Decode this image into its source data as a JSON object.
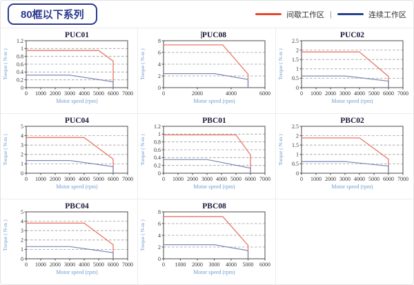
{
  "header": {
    "title": "80框以下系列"
  },
  "legend": {
    "intermittent_label": "间歇工作区",
    "continuous_label": "连续工作区",
    "separator": "|",
    "intermittent_color": "#e8472e",
    "continuous_color": "#24418c"
  },
  "colors": {
    "accent_navy": "#2b3990",
    "chart_red_line": "#e87664",
    "chart_blue_line": "#7b87b4",
    "gridline": "#9a9a9a",
    "axis_border": "#4a4a4a",
    "axis_label_blue": "#6f9ad0",
    "tick_text": "#333333",
    "chart_title": "#1b1b3a"
  },
  "chart_data": [
    {
      "type": "line",
      "title": "PUC01",
      "xlabel": "Motor speed (rpm)",
      "ylabel": "Torque ( N-m )",
      "x_max": 7000,
      "x_ticks": [
        0,
        1000,
        2000,
        3000,
        4000,
        5000,
        6000,
        7000
      ],
      "y_max": 1.2,
      "y_ticks": [
        0,
        0.2,
        0.4,
        0.6,
        0.8,
        1,
        1.2
      ],
      "series": [
        {
          "name": "间歇工作区",
          "color": "red",
          "points": [
            [
              0,
              0.95
            ],
            [
              5000,
              0.95
            ],
            [
              6000,
              0.68
            ],
            [
              6000,
              0
            ]
          ]
        },
        {
          "name": "连续工作区",
          "color": "blue",
          "points": [
            [
              0,
              0.32
            ],
            [
              3000,
              0.32
            ],
            [
              6000,
              0.15
            ],
            [
              6000,
              0
            ]
          ]
        }
      ]
    },
    {
      "type": "line",
      "title": "PUC08",
      "caret": true,
      "xlabel": "Motor speed (rpm)",
      "ylabel": "Torque ( N-m )",
      "x_max": 6000,
      "x_ticks": [
        0,
        2000,
        4000,
        6000
      ],
      "y_max": 8,
      "y_ticks": [
        0,
        2,
        4,
        6,
        8
      ],
      "series": [
        {
          "name": "间歇工作区",
          "color": "red",
          "points": [
            [
              0,
              7.3
            ],
            [
              3500,
              7.3
            ],
            [
              5000,
              2.3
            ],
            [
              5000,
              0
            ]
          ]
        },
        {
          "name": "连续工作区",
          "color": "blue",
          "points": [
            [
              0,
              2.4
            ],
            [
              3000,
              2.4
            ],
            [
              5000,
              1.4
            ],
            [
              5000,
              0
            ]
          ]
        }
      ]
    },
    {
      "type": "line",
      "title": "PUC02",
      "xlabel": "Motor speed (rpm)",
      "ylabel": "Torque ( N-m )",
      "x_max": 7000,
      "x_ticks": [
        0,
        1000,
        2000,
        3000,
        4000,
        5000,
        6000,
        7000
      ],
      "y_max": 2.5,
      "y_ticks": [
        0,
        0.5,
        1,
        1.5,
        2,
        2.5
      ],
      "series": [
        {
          "name": "间歇工作区",
          "color": "red",
          "points": [
            [
              0,
              1.9
            ],
            [
              4000,
              1.9
            ],
            [
              6000,
              0.6
            ],
            [
              6000,
              0
            ]
          ]
        },
        {
          "name": "连续工作区",
          "color": "blue",
          "points": [
            [
              0,
              0.62
            ],
            [
              3000,
              0.62
            ],
            [
              6000,
              0.35
            ],
            [
              6000,
              0
            ]
          ]
        }
      ]
    },
    {
      "type": "line",
      "title": "PUC04",
      "xlabel": "Motor speed (rpm)",
      "ylabel": "Torque ( N-m )",
      "x_max": 7000,
      "x_ticks": [
        0,
        1000,
        2000,
        3000,
        4000,
        5000,
        6000,
        7000
      ],
      "y_max": 5,
      "y_ticks": [
        0,
        1,
        2,
        3,
        4,
        5
      ],
      "series": [
        {
          "name": "间歇工作区",
          "color": "red",
          "points": [
            [
              0,
              3.8
            ],
            [
              4000,
              3.8
            ],
            [
              6000,
              1.5
            ],
            [
              6000,
              0
            ]
          ]
        },
        {
          "name": "连续工作区",
          "color": "blue",
          "points": [
            [
              0,
              1.35
            ],
            [
              3000,
              1.35
            ],
            [
              6000,
              0.7
            ],
            [
              6000,
              0
            ]
          ]
        }
      ]
    },
    {
      "type": "line",
      "title": "PBC01",
      "xlabel": "Motor speed (rpm)",
      "ylabel": "Torque ( N-m )",
      "x_max": 7000,
      "x_ticks": [
        0,
        1000,
        2000,
        3000,
        4000,
        5000,
        6000,
        7000
      ],
      "y_max": 1.2,
      "y_ticks": [
        0,
        0.2,
        0.4,
        0.6,
        0.8,
        1,
        1.2
      ],
      "series": [
        {
          "name": "间歇工作区",
          "color": "red",
          "points": [
            [
              0,
              0.98
            ],
            [
              5000,
              0.98
            ],
            [
              6000,
              0.47
            ],
            [
              6000,
              0
            ]
          ]
        },
        {
          "name": "连续工作区",
          "color": "blue",
          "points": [
            [
              0,
              0.35
            ],
            [
              3000,
              0.35
            ],
            [
              6000,
              0.13
            ],
            [
              6000,
              0
            ]
          ]
        }
      ]
    },
    {
      "type": "line",
      "title": "PBC02",
      "xlabel": "Motor speed (rpm)",
      "ylabel": "Torque ( N-m )",
      "x_max": 7000,
      "x_ticks": [
        0,
        1000,
        2000,
        3000,
        4000,
        5000,
        6000,
        7000
      ],
      "y_max": 2.5,
      "y_ticks": [
        0,
        0.5,
        1,
        1.5,
        2,
        2.5
      ],
      "series": [
        {
          "name": "间歇工作区",
          "color": "red",
          "points": [
            [
              0,
              1.88
            ],
            [
              4000,
              1.88
            ],
            [
              6000,
              0.75
            ],
            [
              6000,
              0
            ]
          ]
        },
        {
          "name": "连续工作区",
          "color": "blue",
          "points": [
            [
              0,
              0.62
            ],
            [
              3000,
              0.62
            ],
            [
              6000,
              0.38
            ],
            [
              6000,
              0
            ]
          ]
        }
      ]
    },
    {
      "type": "line",
      "title": "PBC04",
      "xlabel": "Motor speed (rpm)",
      "ylabel": "Torque ( N-m )",
      "x_max": 7000,
      "x_ticks": [
        0,
        1000,
        2000,
        3000,
        4000,
        5000,
        6000,
        7000
      ],
      "y_max": 5,
      "y_ticks": [
        0,
        1,
        2,
        3,
        4,
        5
      ],
      "series": [
        {
          "name": "间歇工作区",
          "color": "red",
          "points": [
            [
              0,
              3.8
            ],
            [
              4000,
              3.8
            ],
            [
              6000,
              1.5
            ],
            [
              6000,
              0
            ]
          ]
        },
        {
          "name": "连续工作区",
          "color": "blue",
          "points": [
            [
              0,
              1.3
            ],
            [
              3000,
              1.3
            ],
            [
              6000,
              0.65
            ],
            [
              6000,
              0
            ]
          ]
        }
      ]
    },
    {
      "type": "line",
      "title": "PBC08",
      "xlabel": "Motor speed (rpm)",
      "ylabel": "Torque ( N-m )",
      "x_max": 6000,
      "x_ticks": [
        0,
        1000,
        2000,
        3000,
        4000,
        5000,
        6000
      ],
      "y_max": 8,
      "y_ticks": [
        0,
        2,
        4,
        6,
        8
      ],
      "series": [
        {
          "name": "间歇工作区",
          "color": "red",
          "points": [
            [
              0,
              7.2
            ],
            [
              3500,
              7.2
            ],
            [
              5000,
              2.3
            ],
            [
              5000,
              0
            ]
          ]
        },
        {
          "name": "连续工作区",
          "color": "blue",
          "points": [
            [
              0,
              2.4
            ],
            [
              3000,
              2.4
            ],
            [
              5000,
              1.4
            ],
            [
              5000,
              0
            ]
          ]
        }
      ]
    }
  ]
}
